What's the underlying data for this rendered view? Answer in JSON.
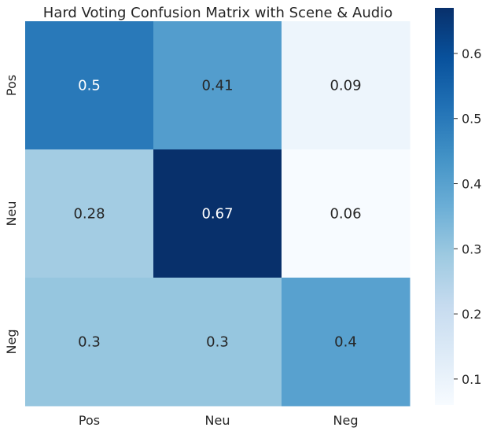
{
  "chart_data": {
    "type": "heatmap",
    "title": "Hard Voting Confusion Matrix with Scene & Audio",
    "xlabel": "",
    "ylabel": "",
    "x_categories": [
      "Pos",
      "Neu",
      "Neg"
    ],
    "y_categories": [
      "Pos",
      "Neu",
      "Neg"
    ],
    "values": [
      [
        0.5,
        0.41,
        0.09
      ],
      [
        0.28,
        0.67,
        0.06
      ],
      [
        0.3,
        0.3,
        0.4
      ]
    ],
    "cell_labels": [
      [
        "0.5",
        "0.41",
        "0.09"
      ],
      [
        "0.28",
        "0.67",
        "0.06"
      ],
      [
        "0.3",
        "0.3",
        "0.4"
      ]
    ],
    "colormap": "Blues",
    "color_range": [
      0.06,
      0.67
    ],
    "colorbar_ticks": [
      0.1,
      0.2,
      0.3,
      0.4,
      0.5,
      0.6
    ],
    "colorbar_tick_labels": [
      "0.1",
      "0.2",
      "0.3",
      "0.4",
      "0.5",
      "0.6"
    ],
    "colorbar_placement": "right",
    "grid": false
  }
}
